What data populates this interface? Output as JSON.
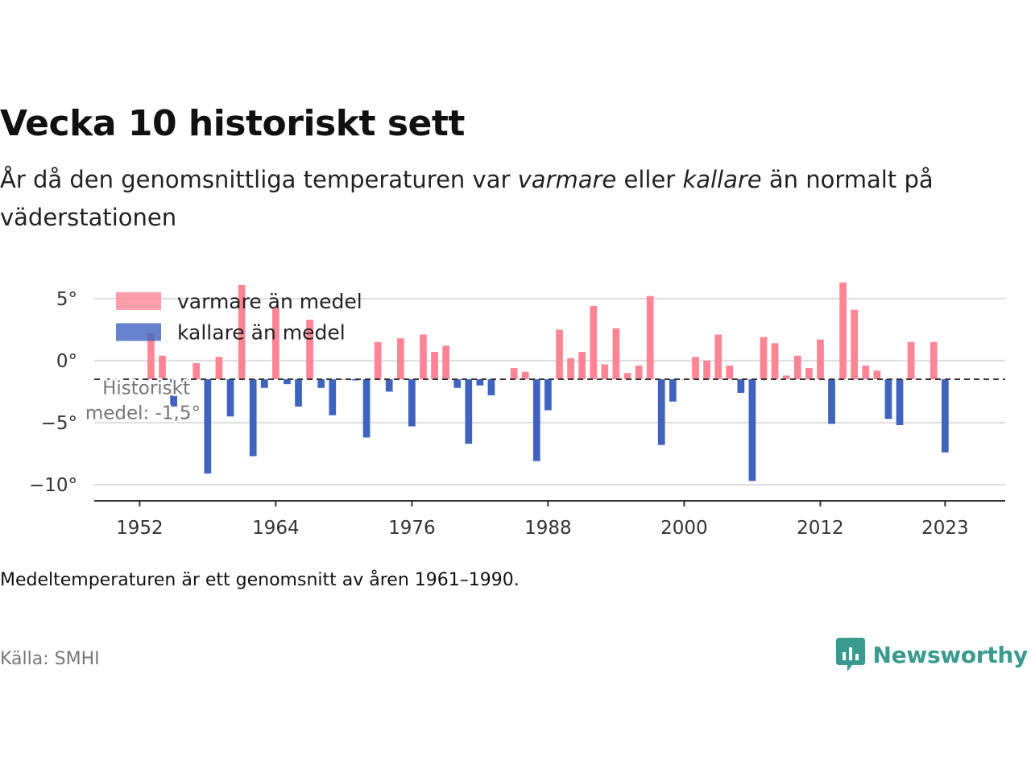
{
  "title": "Vecka 10 historiskt sett",
  "subtitle": {
    "part1": "År då den genomsnittliga temperaturen var ",
    "em1": "varmare",
    "part2": " eller ",
    "em2": "kallare",
    "part3": " än normalt på väderstationen"
  },
  "note": "Medeltemperaturen är ett genomsnitt av åren 1961–1990.",
  "source": "Källa: SMHI",
  "brand": "Newsworthy",
  "colors": {
    "warm": "#ff8595",
    "cold": "#4063bf",
    "grid": "#dddddd",
    "brand": "#3a9a8f"
  },
  "chart_data": {
    "type": "bar",
    "baseline": -1.5,
    "annotation": [
      "Historiskt",
      "medel: -1,5°"
    ],
    "legend": [
      {
        "label": "varmare än medel",
        "color": "#ff8595"
      },
      {
        "label": "kallare än medel",
        "color": "#4063bf"
      }
    ],
    "x_ticks": [
      1952,
      1964,
      1976,
      1988,
      2000,
      2012,
      2023
    ],
    "y_ticks": [
      5,
      0,
      -5,
      -10
    ],
    "y_tick_labels": [
      "5°",
      "0°",
      "−5°",
      "−10°"
    ],
    "ylim": [
      -11.3,
      7.0
    ],
    "xlim": [
      1948,
      2028.3
    ],
    "data": [
      {
        "x": 1953,
        "y": 2.2
      },
      {
        "x": 1954,
        "y": 0.4
      },
      {
        "x": 1955,
        "y": -3.7
      },
      {
        "x": 1956,
        "y": -2.1
      },
      {
        "x": 1957,
        "y": -0.2
      },
      {
        "x": 1958,
        "y": -9.1
      },
      {
        "x": 1959,
        "y": 0.3
      },
      {
        "x": 1960,
        "y": -4.5
      },
      {
        "x": 1961,
        "y": 6.1
      },
      {
        "x": 1962,
        "y": -7.7
      },
      {
        "x": 1963,
        "y": -2.2
      },
      {
        "x": 1964,
        "y": 4.2
      },
      {
        "x": 1965,
        "y": -1.9
      },
      {
        "x": 1966,
        "y": -3.7
      },
      {
        "x": 1967,
        "y": 3.3
      },
      {
        "x": 1968,
        "y": -2.2
      },
      {
        "x": 1969,
        "y": -4.4
      },
      {
        "x": 1970,
        "y": -1.5
      },
      {
        "x": 1971,
        "y": -1.6
      },
      {
        "x": 1972,
        "y": -6.2
      },
      {
        "x": 1973,
        "y": 1.5
      },
      {
        "x": 1974,
        "y": -2.5
      },
      {
        "x": 1975,
        "y": 1.8
      },
      {
        "x": 1976,
        "y": -5.3
      },
      {
        "x": 1977,
        "y": 2.1
      },
      {
        "x": 1978,
        "y": 0.7
      },
      {
        "x": 1979,
        "y": 1.2
      },
      {
        "x": 1980,
        "y": -2.2
      },
      {
        "x": 1981,
        "y": -6.7
      },
      {
        "x": 1982,
        "y": -2.0
      },
      {
        "x": 1983,
        "y": -2.8
      },
      {
        "x": 1984,
        "y": -1.5
      },
      {
        "x": 1985,
        "y": -0.6
      },
      {
        "x": 1986,
        "y": -0.9
      },
      {
        "x": 1987,
        "y": -8.1
      },
      {
        "x": 1988,
        "y": -4.0
      },
      {
        "x": 1989,
        "y": 2.5
      },
      {
        "x": 1990,
        "y": 0.2
      },
      {
        "x": 1991,
        "y": 0.7
      },
      {
        "x": 1992,
        "y": 4.4
      },
      {
        "x": 1993,
        "y": -0.3
      },
      {
        "x": 1994,
        "y": 2.6
      },
      {
        "x": 1995,
        "y": -1.0
      },
      {
        "x": 1996,
        "y": -0.4
      },
      {
        "x": 1997,
        "y": 5.2
      },
      {
        "x": 1998,
        "y": -6.8
      },
      {
        "x": 1999,
        "y": -3.3
      },
      {
        "x": 2000,
        "y": -1.5
      },
      {
        "x": 2001,
        "y": 0.3
      },
      {
        "x": 2002,
        "y": 0.0
      },
      {
        "x": 2003,
        "y": 2.1
      },
      {
        "x": 2004,
        "y": -0.4
      },
      {
        "x": 2005,
        "y": -2.6
      },
      {
        "x": 2006,
        "y": -9.7
      },
      {
        "x": 2007,
        "y": 1.9
      },
      {
        "x": 2008,
        "y": 1.4
      },
      {
        "x": 2009,
        "y": -1.2
      },
      {
        "x": 2010,
        "y": 0.4
      },
      {
        "x": 2011,
        "y": -0.6
      },
      {
        "x": 2012,
        "y": 1.7
      },
      {
        "x": 2013,
        "y": -5.1
      },
      {
        "x": 2014,
        "y": 6.3
      },
      {
        "x": 2015,
        "y": 4.1
      },
      {
        "x": 2016,
        "y": -0.4
      },
      {
        "x": 2017,
        "y": -0.8
      },
      {
        "x": 2018,
        "y": -4.7
      },
      {
        "x": 2019,
        "y": -5.2
      },
      {
        "x": 2020,
        "y": 1.5
      },
      {
        "x": 2022,
        "y": 1.5
      },
      {
        "x": 2023,
        "y": -7.4
      }
    ]
  }
}
